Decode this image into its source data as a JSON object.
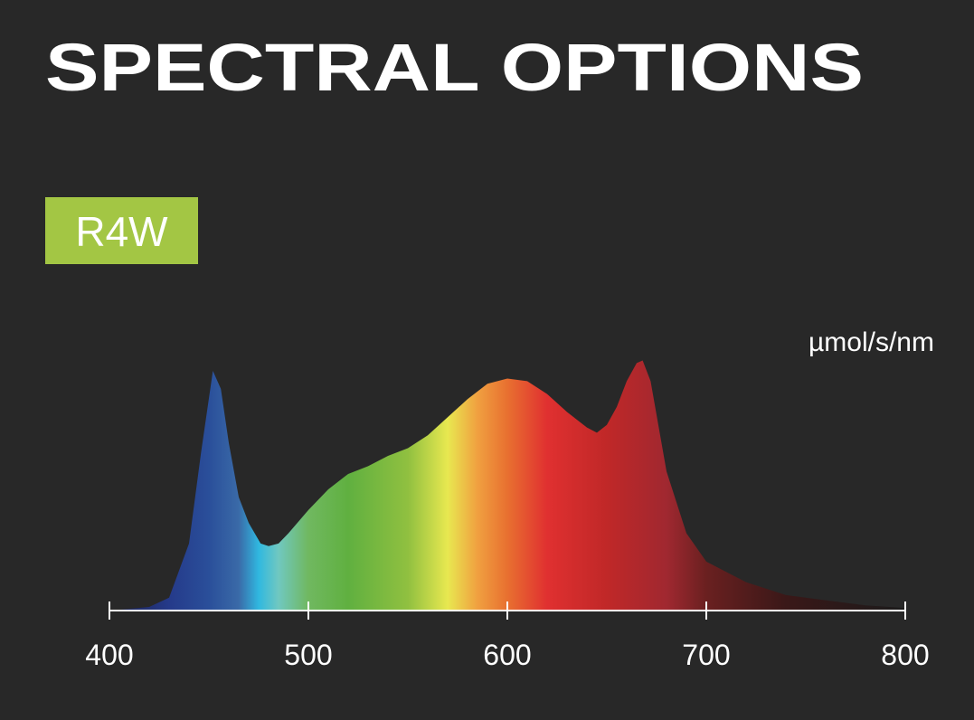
{
  "chart_data": {
    "type": "area",
    "title": "SPECTRAL OPTIONS",
    "badge": "R4W",
    "y_label": "µmol/s/nm",
    "x": [
      400,
      420,
      430,
      440,
      446,
      452,
      456,
      460,
      465,
      470,
      476,
      480,
      485,
      490,
      500,
      510,
      520,
      530,
      540,
      550,
      560,
      570,
      580,
      590,
      600,
      610,
      620,
      630,
      640,
      645,
      650,
      655,
      660,
      665,
      668,
      672,
      680,
      690,
      700,
      720,
      740,
      760,
      780,
      800
    ],
    "values": [
      0,
      0.014,
      0.05,
      0.26,
      0.61,
      0.93,
      0.86,
      0.65,
      0.44,
      0.34,
      0.26,
      0.25,
      0.26,
      0.3,
      0.39,
      0.47,
      0.53,
      0.56,
      0.6,
      0.63,
      0.68,
      0.75,
      0.82,
      0.88,
      0.9,
      0.89,
      0.84,
      0.77,
      0.71,
      0.69,
      0.72,
      0.79,
      0.89,
      0.96,
      0.97,
      0.89,
      0.54,
      0.3,
      0.19,
      0.11,
      0.06,
      0.04,
      0.02,
      0.01
    ],
    "xlim": [
      400,
      800
    ],
    "xticks": [
      400,
      500,
      600,
      700,
      800
    ],
    "ylim": [
      0,
      1
    ]
  }
}
